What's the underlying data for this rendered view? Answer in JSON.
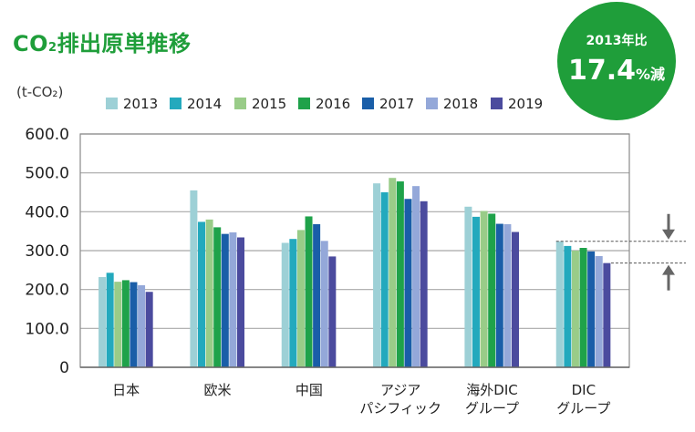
{
  "title_main": "CO",
  "title_sub": "2",
  "title_rest": "排出原単推移",
  "unit_label": "(t-CO₂)",
  "badge": {
    "line1": "2013年比",
    "value": "17.4",
    "unit": "%減"
  },
  "colors": {
    "title_green": "#1f9e3a",
    "series": [
      "#9dd0d6",
      "#23a9bd",
      "#99cc88",
      "#1fa24a",
      "#1a5ea8",
      "#94a8d9",
      "#4b4b9e"
    ]
  },
  "chart_data": {
    "type": "bar",
    "categories": [
      [
        "日本"
      ],
      [
        "欧米"
      ],
      [
        "中国"
      ],
      [
        "アジア",
        "パシフィック"
      ],
      [
        "海外DIC",
        "グループ"
      ],
      [
        "DIC",
        "グループ"
      ]
    ],
    "series": [
      {
        "name": "2013",
        "values": [
          232,
          455,
          320,
          473,
          413,
          324
        ]
      },
      {
        "name": "2014",
        "values": [
          243,
          374,
          330,
          450,
          387,
          312
        ]
      },
      {
        "name": "2015",
        "values": [
          220,
          380,
          353,
          487,
          402,
          300
        ]
      },
      {
        "name": "2016",
        "values": [
          224,
          360,
          388,
          478,
          395,
          307
        ]
      },
      {
        "name": "2017",
        "values": [
          219,
          343,
          368,
          433,
          369,
          298
        ]
      },
      {
        "name": "2018",
        "values": [
          211,
          347,
          325,
          466,
          368,
          286
        ]
      },
      {
        "name": "2019",
        "values": [
          194,
          334,
          285,
          427,
          348,
          268
        ]
      }
    ],
    "y_ticks": [
      "0",
      "100.0",
      "200.0",
      "300.0",
      "400.0",
      "500.0",
      "600.0"
    ],
    "ylim": [
      0,
      600
    ],
    "ylabel": "(t-CO₂)",
    "grid": true,
    "legend": "top"
  }
}
